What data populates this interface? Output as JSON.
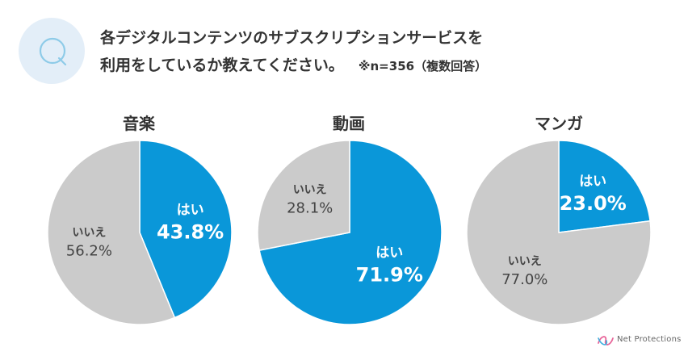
{
  "question": {
    "badge": "Q",
    "line1": "各デジタルコンテンツのサブスクリプションサービスを",
    "line2": "利用をしているか教えてください。",
    "note": "※n=356（複数回答）"
  },
  "colors": {
    "yes": "#0a97d9",
    "no": "#cbcbcb",
    "badge_bg": "#e3eef8",
    "badge_ring": "#8ecbe8"
  },
  "chart_data": [
    {
      "type": "pie",
      "title": "音楽",
      "slices": [
        {
          "label": "はい",
          "value": 43.8,
          "display": "43.8%",
          "color": "#0a97d9"
        },
        {
          "label": "いいえ",
          "value": 56.2,
          "display": "56.2%",
          "color": "#cbcbcb"
        }
      ]
    },
    {
      "type": "pie",
      "title": "動画",
      "slices": [
        {
          "label": "はい",
          "value": 71.9,
          "display": "71.9%",
          "color": "#0a97d9"
        },
        {
          "label": "いいえ",
          "value": 28.1,
          "display": "28.1%",
          "color": "#cbcbcb"
        }
      ]
    },
    {
      "type": "pie",
      "title": "マンガ",
      "slices": [
        {
          "label": "はい",
          "value": 23.0,
          "display": "23.0%",
          "color": "#0a97d9"
        },
        {
          "label": "いいえ",
          "value": 77.0,
          "display": "77.0%",
          "color": "#cbcbcb"
        }
      ]
    }
  ],
  "logo": {
    "text": "Net Protections"
  }
}
